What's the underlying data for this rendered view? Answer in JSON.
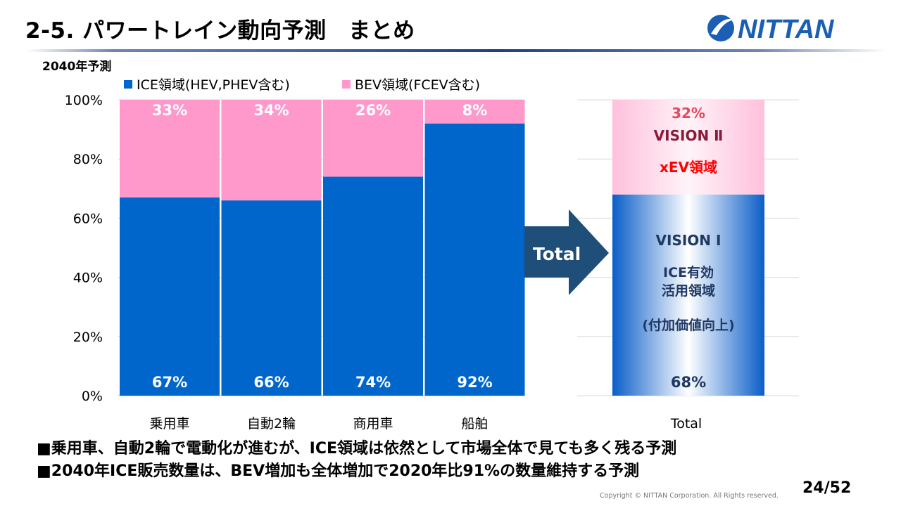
{
  "header": {
    "title": "2-5. パワートレイン動向予測　まとめ",
    "logo_text": "NITTAN"
  },
  "colors": {
    "ice": "#0066cc",
    "bev": "#ff99cc",
    "arrow": "#1f4e79",
    "vision2": "#8b1a3a",
    "xev": "#ff0000",
    "total_pink_pct": "#e8485e",
    "vision1": "#1f3864"
  },
  "chart_data": {
    "type": "bar",
    "stacked": true,
    "subtitle": "2040年予測",
    "categories": [
      "乗用車",
      "自動2輪",
      "商用車",
      "船舶"
    ],
    "series": [
      {
        "name": "ICE領域(HEV,PHEV含む)",
        "values": [
          67,
          66,
          74,
          92
        ],
        "labels": [
          "67%",
          "66%",
          "74%",
          "92%"
        ]
      },
      {
        "name": "BEV領域(FCEV含む)",
        "values": [
          33,
          34,
          26,
          8
        ],
        "labels": [
          "33%",
          "34%",
          "26%",
          "8%"
        ]
      }
    ],
    "yticks": [
      "0%",
      "20%",
      "40%",
      "60%",
      "80%",
      "100%"
    ],
    "ylim": [
      0,
      100
    ],
    "grid": true,
    "legend": "top"
  },
  "arrow": {
    "label": "Total"
  },
  "total": {
    "category": "Total",
    "ice_value": 68,
    "bev_value": 32,
    "ice_label": "68%",
    "bev_label": "32%",
    "vision2": "VISION Ⅱ",
    "xev": "xEV領域",
    "vision1": "VISION Ⅰ",
    "ice_line1": "ICE有効",
    "ice_line2": "活用領域",
    "ice_line3": "(付加価値向上)"
  },
  "bullets": [
    "■乗用車、自動2輪で電動化が進むが、ICE領域は依然として市場全体で見ても多く残る予測",
    "■2040年ICE販売数量は、BEV増加も全体増加で2020年比91%の数量維持する予測"
  ],
  "footer": {
    "copyright": "Copyright © NITTAN Corporation. All Rights reserved.",
    "page": "24/52"
  }
}
